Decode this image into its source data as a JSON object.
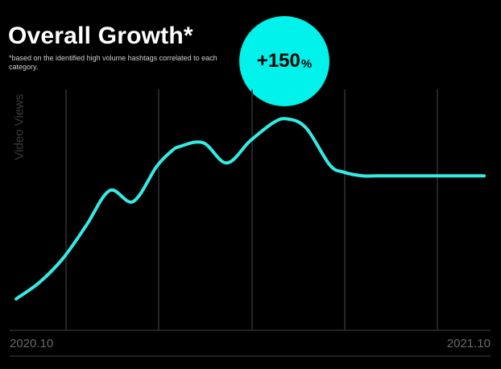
{
  "title": "Overall Growth*",
  "footnote": "*based on the identified high volume hashtags correlated to each category.",
  "growth": {
    "value": "+150",
    "unit": "%"
  },
  "colors": {
    "accent": "#00f2ea",
    "line": "#33ece6",
    "background": "#000000",
    "grid": "#333333"
  },
  "chart_data": {
    "type": "line",
    "title": "Overall Growth*",
    "ylabel": "Video Views",
    "xlabel": "",
    "x_tick_labels": [
      "2020.10",
      "2021.10"
    ],
    "x": [
      0,
      0.05,
      0.1,
      0.15,
      0.2,
      0.25,
      0.3,
      0.33,
      0.35,
      0.4,
      0.45,
      0.5,
      0.55,
      0.58,
      0.62,
      0.67,
      0.7,
      0.74,
      0.77,
      0.8,
      0.83,
      0.86,
      0.9,
      0.95,
      1.0
    ],
    "series": [
      {
        "values": [
          0.0,
          0.09,
          0.22,
          0.4,
          0.59,
          0.53,
          0.72,
          0.8,
          0.83,
          0.85,
          0.74,
          0.86,
          0.96,
          0.98,
          0.93,
          0.73,
          0.69,
          0.67,
          0.67,
          0.67,
          0.67,
          0.67,
          0.67,
          0.67,
          0.67
        ]
      }
    ],
    "ylim": [
      0,
      1
    ],
    "grid": "vertical",
    "legend": "none"
  }
}
